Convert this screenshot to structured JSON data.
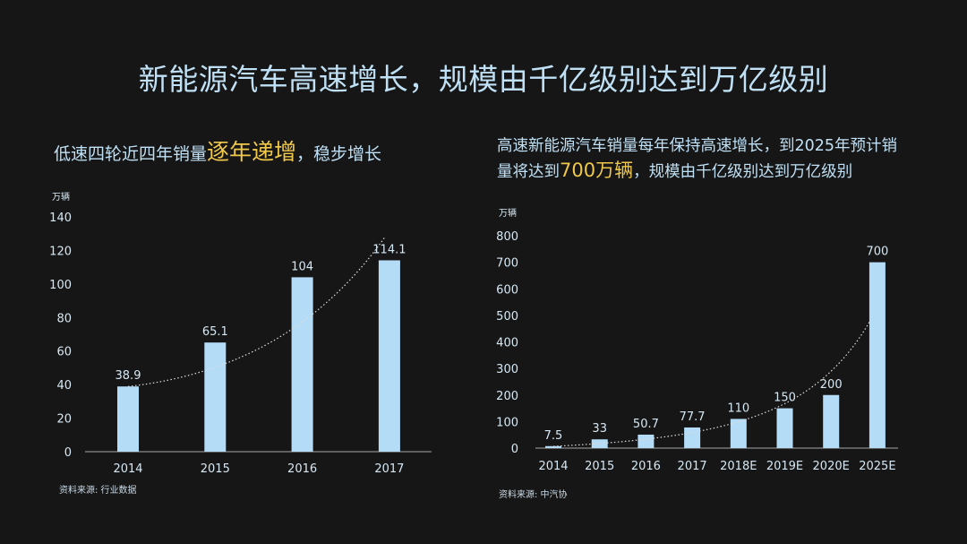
{
  "title": "新能源汽车高速增长，规模由千亿级别达到万亿级别",
  "left_subtitle": {
    "pre": "低速四轮近四年销量",
    "highlight": "逐年递增",
    "post": "，稳步增长"
  },
  "right_subtitle": {
    "pre": "高速新能源汽车销量每年保持高速增长，到2025年预计销量将达到",
    "highlight": "700万辆",
    "post": "，规模由千亿级别达到万亿级别"
  },
  "colors": {
    "bar": "#b4dcf7",
    "highlight": "#f0c84a",
    "background": "#161616",
    "trend": "#dddddd"
  },
  "chart_data": [
    {
      "type": "bar",
      "ylabel": "万辆",
      "categories": [
        "2014",
        "2015",
        "2016",
        "2017"
      ],
      "values": [
        38.9,
        65.1,
        104,
        114.1
      ],
      "value_labels": [
        "38.9",
        "65.1",
        "104",
        "114.1"
      ],
      "ylim": [
        0,
        140
      ],
      "yticks": [
        "0",
        "20",
        "40",
        "60",
        "80",
        "100",
        "120",
        "140"
      ],
      "trendline": "dotted",
      "grid": false,
      "source": "资料来源: 行业数据"
    },
    {
      "type": "bar",
      "ylabel": "万辆",
      "categories": [
        "2014",
        "2015",
        "2016",
        "2017",
        "2018E",
        "2019E",
        "2020E",
        "2025E"
      ],
      "values": [
        7.5,
        33,
        50.7,
        77.7,
        110,
        150,
        200,
        700
      ],
      "value_labels": [
        "7.5",
        "33",
        "50.7",
        "77.7",
        "110",
        "150",
        "200",
        "700"
      ],
      "ylim": [
        0,
        800
      ],
      "yticks": [
        "0",
        "100",
        "200",
        "300",
        "400",
        "500",
        "600",
        "700",
        "800"
      ],
      "trendline": "dotted",
      "grid": false,
      "source": "资料来源: 中汽协"
    }
  ]
}
